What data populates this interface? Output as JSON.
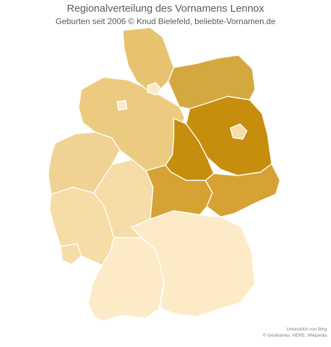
{
  "header": {
    "title": "Regionalverteilung des Vornamens Lennox",
    "subtitle": "Geburten  seit 2006  © Knud Bielefeld, beliebte-Vornamen.de"
  },
  "credits": {
    "line1": "Unterstützt von Bing",
    "line2": "© GeoNames, HERE, Wikipedia"
  },
  "legend_colors": {
    "lowest": "#fdebc8",
    "low": "#f6dca6",
    "light_mid": "#f0d294",
    "mid": "#eccb80",
    "mid_high": "#e7c370",
    "high": "#d3a93f",
    "higher": "#d6a233",
    "highest": "#c68e0c"
  }
}
